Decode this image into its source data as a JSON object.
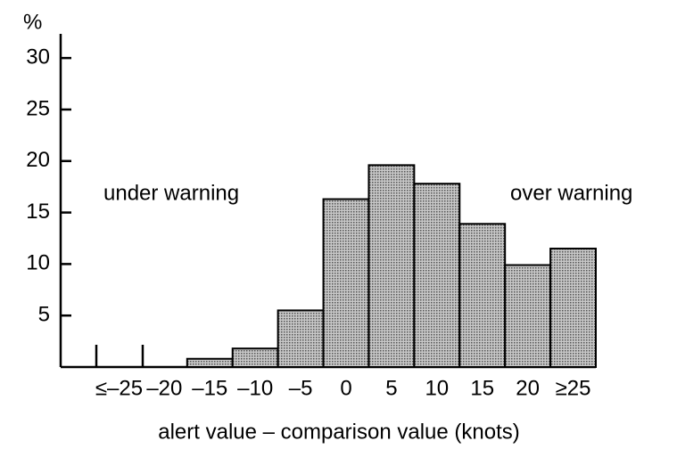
{
  "chart_data": {
    "type": "bar",
    "y_label": "%",
    "x_label": "alert value – comparison value (knots)",
    "annotations": [
      "under warning",
      "over warning"
    ],
    "categories": [
      "≤–25",
      "–20",
      "–15",
      "–10",
      "–5",
      "0",
      "5",
      "10",
      "15",
      "20",
      "≥25"
    ],
    "values": [
      0,
      0,
      0.8,
      1.8,
      5.5,
      16.3,
      19.6,
      17.8,
      13.9,
      9.9,
      11.5
    ],
    "color": "#8a8a8a",
    "ylim": [
      0,
      32
    ],
    "yticks": [
      5,
      10,
      15,
      20,
      25,
      30
    ],
    "grid": false
  }
}
